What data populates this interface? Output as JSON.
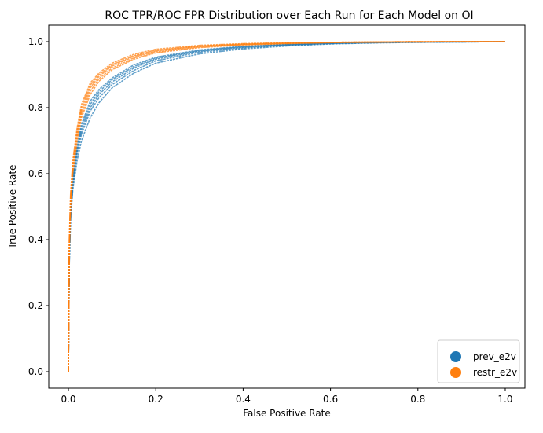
{
  "chart_data": {
    "type": "scatter",
    "title": "ROC TPR/ROC FPR Distribution over Each Run for Each Model on OI",
    "xlabel": "False Positive Rate",
    "ylabel": "True Positive Rate",
    "xlim": [
      -0.045,
      1.045
    ],
    "ylim": [
      -0.05,
      1.05
    ],
    "xticks": [
      0.0,
      0.2,
      0.4,
      0.6,
      0.8,
      1.0
    ],
    "yticks": [
      0.0,
      0.2,
      0.4,
      0.6,
      0.8,
      1.0
    ],
    "xtick_labels": [
      "0.0",
      "0.2",
      "0.4",
      "0.6",
      "0.8",
      "1.0"
    ],
    "ytick_labels": [
      "0.0",
      "0.2",
      "0.4",
      "0.6",
      "0.8",
      "1.0"
    ],
    "grid": false,
    "legend_position": "lower-right",
    "series": [
      {
        "name": "prev_e2v",
        "color": "#1f77b4",
        "runs": [
          {
            "x": [
              0,
              0.002,
              0.005,
              0.01,
              0.02,
              0.03,
              0.05,
              0.07,
              0.1,
              0.15,
              0.2,
              0.3,
              0.4,
              0.5,
              0.6,
              0.7,
              0.8,
              0.9,
              1.0
            ],
            "y": [
              0,
              0.32,
              0.46,
              0.55,
              0.64,
              0.7,
              0.77,
              0.815,
              0.86,
              0.905,
              0.935,
              0.963,
              0.978,
              0.987,
              0.993,
              0.996,
              0.998,
              0.999,
              1.0
            ]
          },
          {
            "x": [
              0,
              0.002,
              0.005,
              0.01,
              0.02,
              0.03,
              0.05,
              0.07,
              0.1,
              0.15,
              0.2,
              0.3,
              0.4,
              0.5,
              0.6,
              0.7,
              0.8,
              0.9,
              1.0
            ],
            "y": [
              0,
              0.33,
              0.47,
              0.56,
              0.66,
              0.72,
              0.79,
              0.83,
              0.87,
              0.913,
              0.942,
              0.968,
              0.981,
              0.989,
              0.994,
              0.997,
              0.998,
              0.999,
              1.0
            ]
          },
          {
            "x": [
              0,
              0.002,
              0.005,
              0.01,
              0.02,
              0.03,
              0.05,
              0.07,
              0.1,
              0.15,
              0.2,
              0.3,
              0.4,
              0.5,
              0.6,
              0.7,
              0.8,
              0.9,
              1.0
            ],
            "y": [
              0,
              0.34,
              0.48,
              0.57,
              0.67,
              0.73,
              0.8,
              0.84,
              0.878,
              0.92,
              0.947,
              0.971,
              0.983,
              0.99,
              0.995,
              0.997,
              0.999,
              0.999,
              1.0
            ]
          },
          {
            "x": [
              0,
              0.002,
              0.005,
              0.01,
              0.02,
              0.03,
              0.05,
              0.07,
              0.1,
              0.15,
              0.2,
              0.3,
              0.4,
              0.5,
              0.6,
              0.7,
              0.8,
              0.9,
              1.0
            ],
            "y": [
              0,
              0.35,
              0.49,
              0.58,
              0.68,
              0.74,
              0.81,
              0.848,
              0.885,
              0.925,
              0.95,
              0.973,
              0.985,
              0.991,
              0.995,
              0.998,
              0.999,
              1.0,
              1.0
            ]
          },
          {
            "x": [
              0,
              0.002,
              0.005,
              0.01,
              0.02,
              0.03,
              0.05,
              0.07,
              0.1,
              0.15,
              0.2,
              0.3,
              0.4,
              0.5,
              0.6,
              0.7,
              0.8,
              0.9,
              1.0
            ],
            "y": [
              0,
              0.36,
              0.5,
              0.59,
              0.69,
              0.75,
              0.82,
              0.855,
              0.89,
              0.93,
              0.953,
              0.975,
              0.986,
              0.992,
              0.996,
              0.998,
              0.999,
              1.0,
              1.0
            ]
          }
        ]
      },
      {
        "name": "restr_e2v",
        "color": "#ff7f0e",
        "runs": [
          {
            "x": [
              0,
              0.002,
              0.005,
              0.01,
              0.02,
              0.03,
              0.05,
              0.07,
              0.1,
              0.15,
              0.2,
              0.3,
              0.4,
              0.5,
              0.6,
              0.7,
              0.8,
              0.9,
              1.0
            ],
            "y": [
              0,
              0.36,
              0.5,
              0.6,
              0.7,
              0.77,
              0.84,
              0.88,
              0.915,
              0.947,
              0.966,
              0.982,
              0.99,
              0.994,
              0.997,
              0.998,
              0.999,
              1.0,
              1.0
            ]
          },
          {
            "x": [
              0,
              0.002,
              0.005,
              0.01,
              0.02,
              0.03,
              0.05,
              0.07,
              0.1,
              0.15,
              0.2,
              0.3,
              0.4,
              0.5,
              0.6,
              0.7,
              0.8,
              0.9,
              1.0
            ],
            "y": [
              0,
              0.37,
              0.51,
              0.61,
              0.71,
              0.78,
              0.85,
              0.888,
              0.92,
              0.951,
              0.969,
              0.984,
              0.991,
              0.995,
              0.997,
              0.999,
              0.999,
              1.0,
              1.0
            ]
          },
          {
            "x": [
              0,
              0.002,
              0.005,
              0.01,
              0.02,
              0.03,
              0.05,
              0.07,
              0.1,
              0.15,
              0.2,
              0.3,
              0.4,
              0.5,
              0.6,
              0.7,
              0.8,
              0.9,
              1.0
            ],
            "y": [
              0,
              0.38,
              0.52,
              0.62,
              0.72,
              0.79,
              0.86,
              0.895,
              0.926,
              0.955,
              0.972,
              0.986,
              0.992,
              0.995,
              0.998,
              0.999,
              1.0,
              1.0,
              1.0
            ]
          },
          {
            "x": [
              0,
              0.002,
              0.005,
              0.01,
              0.02,
              0.03,
              0.05,
              0.07,
              0.1,
              0.15,
              0.2,
              0.3,
              0.4,
              0.5,
              0.6,
              0.7,
              0.8,
              0.9,
              1.0
            ],
            "y": [
              0,
              0.39,
              0.53,
              0.63,
              0.73,
              0.8,
              0.868,
              0.9,
              0.93,
              0.958,
              0.974,
              0.987,
              0.993,
              0.996,
              0.998,
              0.999,
              1.0,
              1.0,
              1.0
            ]
          },
          {
            "x": [
              0,
              0.002,
              0.005,
              0.01,
              0.02,
              0.03,
              0.05,
              0.07,
              0.1,
              0.15,
              0.2,
              0.3,
              0.4,
              0.5,
              0.6,
              0.7,
              0.8,
              0.9,
              1.0
            ],
            "y": [
              0,
              0.4,
              0.54,
              0.64,
              0.74,
              0.81,
              0.875,
              0.905,
              0.935,
              0.962,
              0.977,
              0.989,
              0.994,
              0.997,
              0.998,
              0.999,
              1.0,
              1.0,
              1.0
            ]
          }
        ]
      }
    ]
  }
}
